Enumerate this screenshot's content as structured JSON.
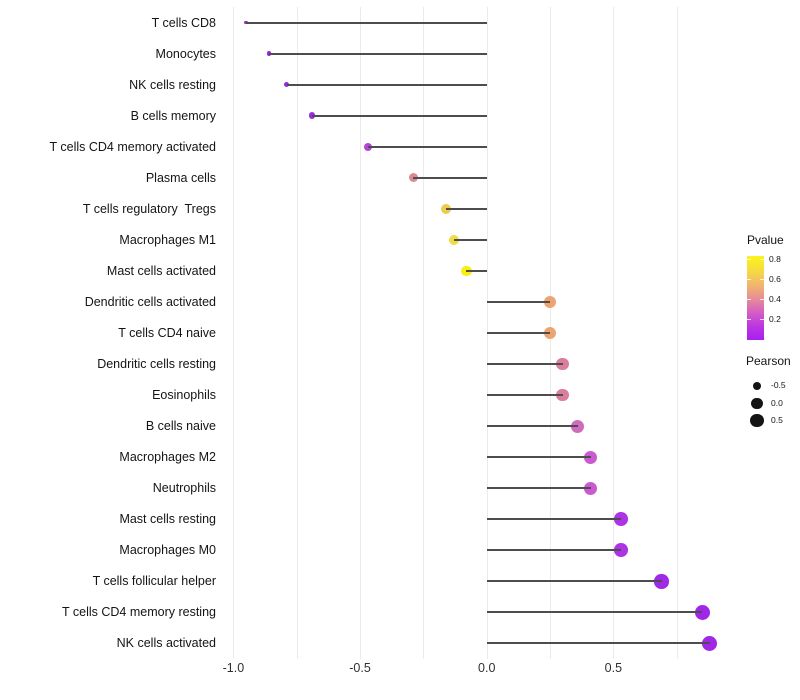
{
  "chart_data": {
    "type": "scatter",
    "variant": "lollipop",
    "title": "",
    "xlabel": "",
    "ylabel": "",
    "xlim": [
      -1.045,
      0.988
    ],
    "x_ticks": {
      "values": [
        -1.0,
        -0.5,
        0.0,
        0.5
      ],
      "labels": [
        "-1.0",
        "-0.5",
        "0.0",
        "0.5"
      ]
    },
    "x_minor_grid": [
      -1.0,
      -0.75,
      -0.5,
      -0.25,
      0.0,
      0.25,
      0.5,
      0.75
    ],
    "grid": "vertical-only",
    "baseline": 0.0,
    "points": [
      {
        "label": "T cells CD8",
        "pearson": -0.95,
        "pvalue": 0.02,
        "color": "#9626E2"
      },
      {
        "label": "Monocytes",
        "pearson": -0.86,
        "pvalue": 0.03,
        "color": "#9827E1"
      },
      {
        "label": "NK cells resting",
        "pearson": -0.79,
        "pvalue": 0.04,
        "color": "#9929E1"
      },
      {
        "label": "B cells memory",
        "pearson": -0.69,
        "pvalue": 0.06,
        "color": "#9D2CE0"
      },
      {
        "label": "T cells CD4 memory activated",
        "pearson": -0.47,
        "pvalue": 0.16,
        "color": "#B546D4"
      },
      {
        "label": "Plasma cells",
        "pearson": -0.29,
        "pvalue": 0.46,
        "color": "#DB8A92"
      },
      {
        "label": "T cells regulatory  Tregs",
        "pearson": -0.16,
        "pvalue": 0.7,
        "color": "#ECCB4F"
      },
      {
        "label": "Macrophages M1",
        "pearson": -0.13,
        "pvalue": 0.76,
        "color": "#F1DC45"
      },
      {
        "label": "Mast cells activated",
        "pearson": -0.08,
        "pvalue": 0.82,
        "color": "#F6EE15"
      },
      {
        "label": "Dendritic cells activated",
        "pearson": 0.25,
        "pvalue": 0.56,
        "color": "#ECA471"
      },
      {
        "label": "T cells CD4 naive",
        "pearson": 0.25,
        "pvalue": 0.56,
        "color": "#ECA471"
      },
      {
        "label": "Dendritic cells resting",
        "pearson": 0.3,
        "pvalue": 0.43,
        "color": "#DA7E9B"
      },
      {
        "label": "Eosinophils",
        "pearson": 0.3,
        "pvalue": 0.43,
        "color": "#DA7E9B"
      },
      {
        "label": "B cells naive",
        "pearson": 0.36,
        "pvalue": 0.33,
        "color": "#CE6DBB"
      },
      {
        "label": "Macrophages M2",
        "pearson": 0.41,
        "pvalue": 0.26,
        "color": "#C95BCF"
      },
      {
        "label": "Neutrophils",
        "pearson": 0.41,
        "pvalue": 0.26,
        "color": "#C95BCF"
      },
      {
        "label": "Mast cells resting",
        "pearson": 0.53,
        "pvalue": 0.11,
        "color": "#AD33E5"
      },
      {
        "label": "Macrophages M0",
        "pearson": 0.53,
        "pvalue": 0.11,
        "color": "#AD33E5"
      },
      {
        "label": "T cells follicular helper",
        "pearson": 0.69,
        "pvalue": 0.05,
        "color": "#9F2AE5"
      },
      {
        "label": "T cells CD4 memory resting",
        "pearson": 0.85,
        "pvalue": 0.025,
        "color": "#A026E8"
      },
      {
        "label": "NK cells activated",
        "pearson": 0.88,
        "pvalue": 0.02,
        "color": "#A026E8"
      }
    ],
    "legend": {
      "position": "right",
      "pvalue": {
        "title": "Pvalue",
        "tick_values": [
          0.8,
          0.6,
          0.4,
          0.2
        ],
        "tick_labels": [
          "0.8",
          "0.6",
          "0.4",
          "0.2"
        ],
        "range": [
          0.0,
          0.83
        ],
        "gradient_top_to_bottom": [
          "#FAF518",
          "#F6DC3F",
          "#F2B86B",
          "#E78F94",
          "#D55FC2",
          "#BC37E2",
          "#A81FF0"
        ]
      },
      "pearson": {
        "title": "Pearson",
        "size_values": [
          -0.5,
          0.0,
          0.5
        ],
        "size_labels": [
          "-0.5",
          "0.0",
          "0.5"
        ],
        "dot_color": "#141414"
      }
    },
    "colors": {
      "stem": "#4d4d4d",
      "gridline": "#ebebeb",
      "axis_text": "#141414"
    }
  }
}
